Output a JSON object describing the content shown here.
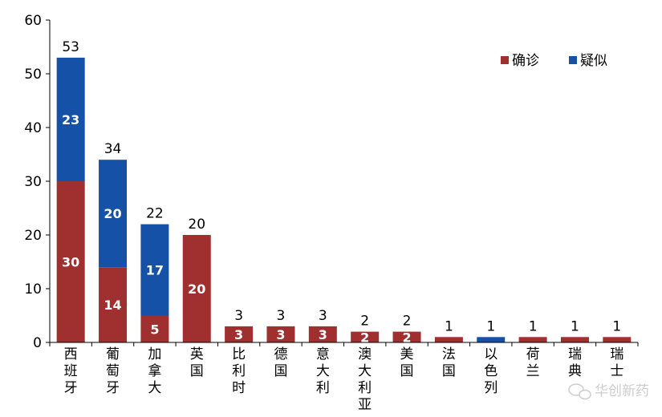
{
  "chart_data": {
    "type": "bar",
    "stacked": true,
    "categories": [
      "西班牙",
      "葡萄牙",
      "加拿大",
      "英国",
      "比利时",
      "德国",
      "意大利",
      "澳大利亚",
      "美国",
      "法国",
      "以色列",
      "荷兰",
      "瑞典",
      "瑞士"
    ],
    "series": [
      {
        "name": "确诊",
        "color": "#a0302f",
        "values": [
          30,
          14,
          5,
          20,
          3,
          3,
          3,
          2,
          2,
          1,
          0,
          1,
          1,
          1
        ]
      },
      {
        "name": "疑似",
        "color": "#1651a8",
        "values": [
          23,
          20,
          17,
          0,
          0,
          0,
          0,
          0,
          0,
          0,
          1,
          0,
          0,
          0
        ]
      }
    ],
    "totals": [
      53,
      34,
      22,
      20,
      3,
      3,
      3,
      2,
      2,
      1,
      1,
      1,
      1,
      1
    ],
    "show_segment_labels": [
      [
        true,
        true,
        true,
        true,
        true,
        true,
        true,
        true,
        true,
        false,
        false,
        false,
        false,
        false
      ],
      [
        true,
        true,
        true,
        false,
        false,
        false,
        false,
        false,
        false,
        false,
        false,
        false,
        false,
        false
      ]
    ],
    "yticks": [
      0,
      10,
      20,
      30,
      40,
      50,
      60
    ],
    "ylim": [
      0,
      60
    ],
    "legend": {
      "position": "top-right",
      "entries": [
        "确诊",
        "疑似"
      ]
    },
    "grid": false,
    "title": "",
    "xlabel": "",
    "ylabel": ""
  },
  "watermark": {
    "text": "华创新药",
    "icon": "wechat-icon"
  }
}
